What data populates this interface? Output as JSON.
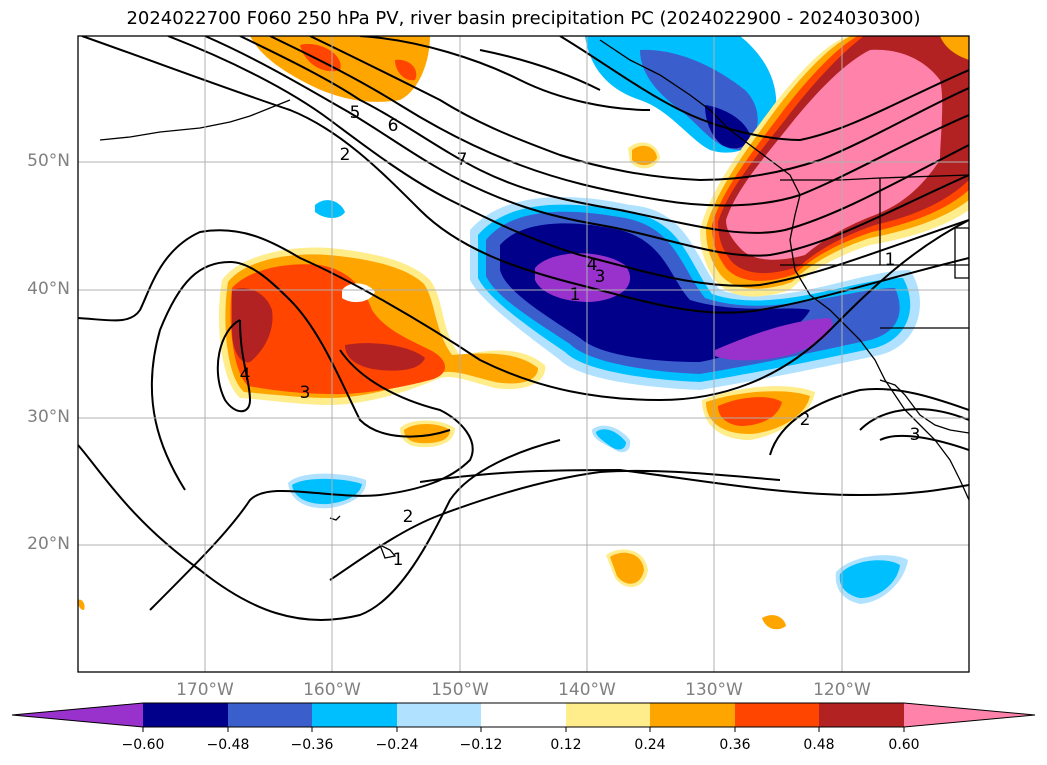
{
  "title": "2024022700 F060 250 hPa PV, river basin precipitation PC (2024022900 - 2024030300)",
  "map": {
    "lat_labels": [
      "50°N",
      "40°N",
      "30°N",
      "20°N"
    ],
    "lon_labels": [
      "170°W",
      "160°W",
      "150°W",
      "140°W",
      "130°W",
      "120°W"
    ],
    "contour_labels": [
      "2",
      "5",
      "6",
      "7",
      "4",
      "3",
      "1",
      "3",
      "4",
      "2",
      "1",
      "1",
      "2",
      "3"
    ]
  },
  "colorbar": {
    "colors": [
      "#9932cc",
      "#00008b",
      "#3a5fcd",
      "#00bfff",
      "#b0e2ff",
      "#ffffff",
      "#ffec8b",
      "#ffa500",
      "#ff4500",
      "#b22222",
      "#ff82ab"
    ],
    "tick_labels": [
      "−0.60",
      "−0.48",
      "−0.36",
      "−0.24",
      "−0.12",
      "0.12",
      "0.24",
      "0.36",
      "0.48",
      "0.60"
    ]
  }
}
